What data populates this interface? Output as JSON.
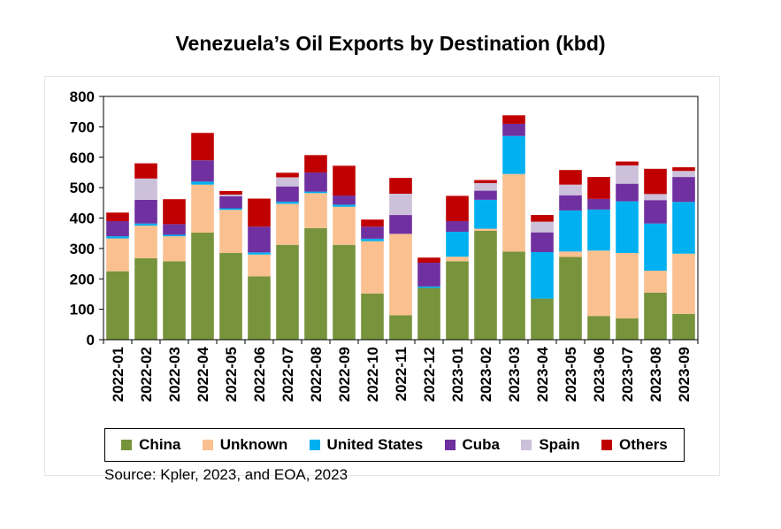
{
  "title": "Venezuela’s Oil Exports  by Destination (kbd)",
  "source": "Source: Kpler, 2023, and EOA, 2023",
  "chart_data": {
    "type": "bar",
    "stacked": true,
    "title": "Venezuela’s Oil Exports  by Destination (kbd)",
    "ylim": [
      0,
      800
    ],
    "yticks": [
      "0",
      "100",
      "200",
      "300",
      "400",
      "500",
      "600",
      "700",
      "800"
    ],
    "categories": [
      "2022-01",
      "2022-02",
      "2022-03",
      "2022-04",
      "2022-05",
      "2022-06",
      "2022-07",
      "2022-08",
      "2022-09",
      "2022-10",
      "2022-11",
      "2022-12",
      "2023-01",
      "2023-02",
      "2023-03",
      "2023-04",
      "2023-05",
      "2023-06",
      "2023-07",
      "2023-08",
      "2023-09"
    ],
    "grid": false,
    "legend_position": "bottom",
    "series": [
      {
        "name": "China",
        "color": "#77933C",
        "values": [
          225,
          268,
          258,
          352,
          285,
          208,
          312,
          367,
          312,
          152,
          80,
          170,
          258,
          358,
          290,
          135,
          272,
          78,
          70,
          155,
          85
        ]
      },
      {
        "name": "Unknown",
        "color": "#FAC090",
        "values": [
          108,
          107,
          82,
          158,
          142,
          72,
          135,
          115,
          125,
          172,
          268,
          0,
          15,
          7,
          255,
          0,
          18,
          215,
          215,
          72,
          198
        ]
      },
      {
        "name": "United States",
        "color": "#00B0F0",
        "values": [
          7,
          7,
          5,
          10,
          5,
          7,
          7,
          5,
          7,
          8,
          0,
          5,
          82,
          95,
          125,
          153,
          135,
          135,
          170,
          155,
          170
        ]
      },
      {
        "name": "Cuba",
        "color": "#7030A0",
        "values": [
          50,
          78,
          35,
          70,
          40,
          85,
          50,
          63,
          30,
          40,
          62,
          78,
          35,
          30,
          40,
          65,
          50,
          35,
          58,
          77,
          82
        ]
      },
      {
        "name": "Spain",
        "color": "#CCC0DA",
        "values": [
          0,
          70,
          0,
          0,
          5,
          0,
          30,
          0,
          0,
          0,
          70,
          0,
          0,
          25,
          0,
          35,
          35,
          0,
          60,
          20,
          20
        ]
      },
      {
        "name": "Others",
        "color": "#C00000",
        "values": [
          28,
          50,
          82,
          90,
          12,
          92,
          15,
          57,
          98,
          23,
          52,
          17,
          83,
          10,
          28,
          22,
          48,
          72,
          13,
          83,
          12
        ]
      }
    ]
  }
}
